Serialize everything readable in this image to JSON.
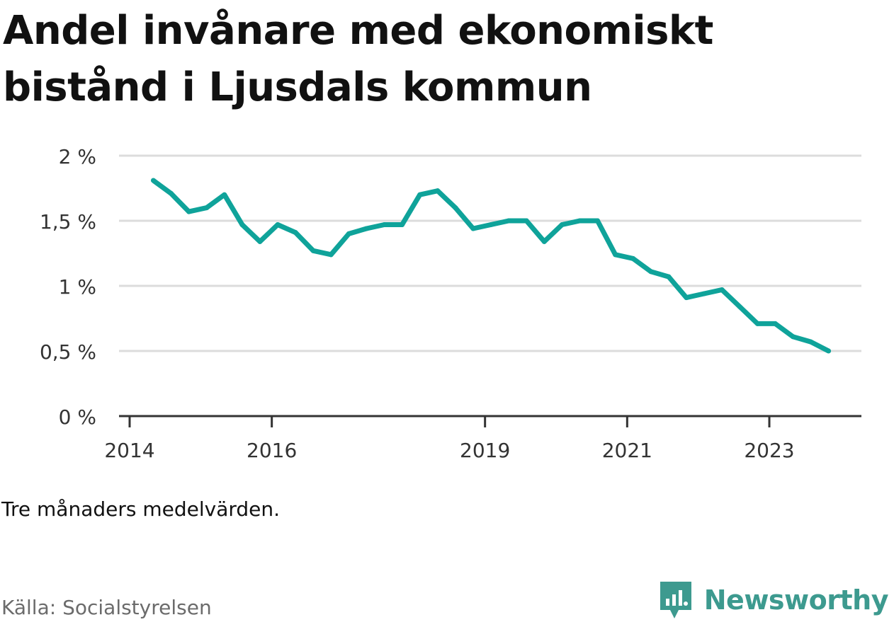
{
  "title": "Andel invånare med ekonomiskt bistånd i Ljusdals kommun",
  "note": "Tre månaders medelvärden.",
  "source": "Källa: Socialstyrelsen",
  "brand": {
    "name": "Newsworthy",
    "icon": "newsworthy-logo-icon",
    "color": "#3d9a8f"
  },
  "colors": {
    "line": "#0fa39a",
    "grid": "#dcdcdc",
    "axis": "#333333",
    "text": "#111111",
    "muted": "#6b6b6b"
  },
  "chart_data": {
    "type": "line",
    "title": "Andel invånare med ekonomiskt bistånd i Ljusdals kommun",
    "xlabel": "",
    "ylabel": "",
    "y_unit": "%",
    "ylim": [
      0,
      2
    ],
    "yticks": [
      0,
      0.5,
      1,
      1.5,
      2
    ],
    "ytick_labels": [
      "0 %",
      "0,5 %",
      "1 %",
      "1,5 %",
      "2 %"
    ],
    "xticks": [
      "2014-01-01",
      "2016-01-01",
      "2019-01-01",
      "2021-01-01",
      "2023-01-01"
    ],
    "xtick_labels": [
      "2014",
      "2016",
      "2019",
      "2021",
      "2023"
    ],
    "grid": true,
    "legend": "none",
    "series": [
      {
        "points": [
          {
            "x": "2014-05",
            "y": 1.81
          },
          {
            "x": "2014-08",
            "y": 1.71
          },
          {
            "x": "2014-11",
            "y": 1.57
          },
          {
            "x": "2015-02",
            "y": 1.6
          },
          {
            "x": "2015-05",
            "y": 1.7
          },
          {
            "x": "2015-08",
            "y": 1.47
          },
          {
            "x": "2015-11",
            "y": 1.34
          },
          {
            "x": "2016-02",
            "y": 1.47
          },
          {
            "x": "2016-05",
            "y": 1.41
          },
          {
            "x": "2016-08",
            "y": 1.27
          },
          {
            "x": "2016-11",
            "y": 1.24
          },
          {
            "x": "2017-02",
            "y": 1.4
          },
          {
            "x": "2017-05",
            "y": 1.44
          },
          {
            "x": "2017-08",
            "y": 1.47
          },
          {
            "x": "2017-11",
            "y": 1.47
          },
          {
            "x": "2018-02",
            "y": 1.7
          },
          {
            "x": "2018-05",
            "y": 1.73
          },
          {
            "x": "2018-08",
            "y": 1.6
          },
          {
            "x": "2018-11",
            "y": 1.44
          },
          {
            "x": "2019-02",
            "y": 1.47
          },
          {
            "x": "2019-05",
            "y": 1.5
          },
          {
            "x": "2019-08",
            "y": 1.5
          },
          {
            "x": "2019-11",
            "y": 1.34
          },
          {
            "x": "2020-02",
            "y": 1.47
          },
          {
            "x": "2020-05",
            "y": 1.5
          },
          {
            "x": "2020-08",
            "y": 1.5
          },
          {
            "x": "2020-11",
            "y": 1.24
          },
          {
            "x": "2021-02",
            "y": 1.21
          },
          {
            "x": "2021-05",
            "y": 1.11
          },
          {
            "x": "2021-08",
            "y": 1.07
          },
          {
            "x": "2021-11",
            "y": 0.91
          },
          {
            "x": "2022-02",
            "y": 0.94
          },
          {
            "x": "2022-05",
            "y": 0.97
          },
          {
            "x": "2022-08",
            "y": 0.84
          },
          {
            "x": "2022-11",
            "y": 0.71
          },
          {
            "x": "2023-02",
            "y": 0.71
          },
          {
            "x": "2023-05",
            "y": 0.61
          },
          {
            "x": "2023-08",
            "y": 0.57
          },
          {
            "x": "2023-11",
            "y": 0.5
          }
        ]
      }
    ]
  }
}
